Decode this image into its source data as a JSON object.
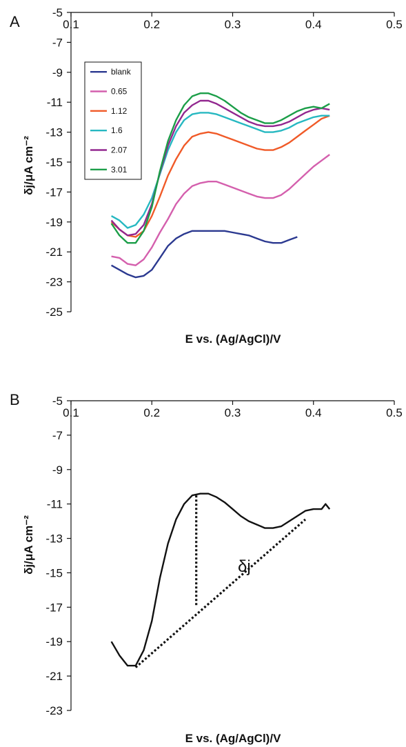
{
  "chart_data": [
    {
      "panel_label": "A",
      "type": "line",
      "xlabel": "E vs. (Ag/AgCl)/V",
      "ylabel": "δj/μA cm⁻²",
      "xlim": [
        0.1,
        0.5
      ],
      "ylim": [
        -25,
        -5
      ],
      "xticks": [
        0.1,
        0.2,
        0.3,
        0.4,
        0.5
      ],
      "yticks": [
        -5,
        -7,
        -9,
        -11,
        -13,
        -15,
        -17,
        -19,
        -21,
        -23,
        -25
      ],
      "grid": false,
      "legend_position": "top-left",
      "series": [
        {
          "name": "blank",
          "color": "#2b3990",
          "points": [
            [
              0.15,
              -21.9
            ],
            [
              0.16,
              -22.2
            ],
            [
              0.17,
              -22.5
            ],
            [
              0.18,
              -22.7
            ],
            [
              0.19,
              -22.6
            ],
            [
              0.2,
              -22.2
            ],
            [
              0.21,
              -21.4
            ],
            [
              0.22,
              -20.6
            ],
            [
              0.23,
              -20.1
            ],
            [
              0.24,
              -19.8
            ],
            [
              0.25,
              -19.6
            ],
            [
              0.26,
              -19.6
            ],
            [
              0.27,
              -19.6
            ],
            [
              0.28,
              -19.6
            ],
            [
              0.29,
              -19.6
            ],
            [
              0.3,
              -19.7
            ],
            [
              0.31,
              -19.8
            ],
            [
              0.32,
              -19.9
            ],
            [
              0.33,
              -20.1
            ],
            [
              0.34,
              -20.3
            ],
            [
              0.35,
              -20.4
            ],
            [
              0.36,
              -20.4
            ],
            [
              0.37,
              -20.2
            ],
            [
              0.38,
              -20.0
            ]
          ]
        },
        {
          "name": "0.65",
          "color": "#d45fad",
          "points": [
            [
              0.15,
              -21.3
            ],
            [
              0.16,
              -21.4
            ],
            [
              0.17,
              -21.8
            ],
            [
              0.18,
              -21.9
            ],
            [
              0.19,
              -21.5
            ],
            [
              0.2,
              -20.7
            ],
            [
              0.21,
              -19.7
            ],
            [
              0.22,
              -18.8
            ],
            [
              0.23,
              -17.8
            ],
            [
              0.24,
              -17.1
            ],
            [
              0.25,
              -16.6
            ],
            [
              0.26,
              -16.4
            ],
            [
              0.27,
              -16.3
            ],
            [
              0.28,
              -16.3
            ],
            [
              0.29,
              -16.5
            ],
            [
              0.3,
              -16.7
            ],
            [
              0.31,
              -16.9
            ],
            [
              0.32,
              -17.1
            ],
            [
              0.33,
              -17.3
            ],
            [
              0.34,
              -17.4
            ],
            [
              0.35,
              -17.4
            ],
            [
              0.36,
              -17.2
            ],
            [
              0.37,
              -16.8
            ],
            [
              0.38,
              -16.3
            ],
            [
              0.39,
              -15.8
            ],
            [
              0.4,
              -15.3
            ],
            [
              0.41,
              -14.9
            ],
            [
              0.42,
              -14.5
            ]
          ]
        },
        {
          "name": "1.12",
          "color": "#f05a28",
          "points": [
            [
              0.15,
              -19.0
            ],
            [
              0.16,
              -19.5
            ],
            [
              0.17,
              -19.9
            ],
            [
              0.18,
              -20.0
            ],
            [
              0.19,
              -19.6
            ],
            [
              0.2,
              -18.6
            ],
            [
              0.21,
              -17.3
            ],
            [
              0.22,
              -15.9
            ],
            [
              0.23,
              -14.8
            ],
            [
              0.24,
              -13.9
            ],
            [
              0.25,
              -13.3
            ],
            [
              0.26,
              -13.1
            ],
            [
              0.27,
              -13.0
            ],
            [
              0.28,
              -13.1
            ],
            [
              0.29,
              -13.3
            ],
            [
              0.3,
              -13.5
            ],
            [
              0.31,
              -13.7
            ],
            [
              0.32,
              -13.9
            ],
            [
              0.33,
              -14.1
            ],
            [
              0.34,
              -14.2
            ],
            [
              0.35,
              -14.2
            ],
            [
              0.36,
              -14.0
            ],
            [
              0.37,
              -13.7
            ],
            [
              0.38,
              -13.3
            ],
            [
              0.39,
              -12.9
            ],
            [
              0.4,
              -12.5
            ],
            [
              0.41,
              -12.1
            ],
            [
              0.42,
              -11.9
            ]
          ]
        },
        {
          "name": "1.6",
          "color": "#26b8c1",
          "points": [
            [
              0.15,
              -18.6
            ],
            [
              0.16,
              -18.9
            ],
            [
              0.17,
              -19.4
            ],
            [
              0.18,
              -19.2
            ],
            [
              0.19,
              -18.5
            ],
            [
              0.2,
              -17.4
            ],
            [
              0.21,
              -15.8
            ],
            [
              0.22,
              -14.2
            ],
            [
              0.23,
              -13.0
            ],
            [
              0.24,
              -12.2
            ],
            [
              0.25,
              -11.8
            ],
            [
              0.26,
              -11.7
            ],
            [
              0.27,
              -11.7
            ],
            [
              0.28,
              -11.8
            ],
            [
              0.29,
              -12.0
            ],
            [
              0.3,
              -12.2
            ],
            [
              0.31,
              -12.4
            ],
            [
              0.32,
              -12.6
            ],
            [
              0.33,
              -12.8
            ],
            [
              0.34,
              -13.0
            ],
            [
              0.35,
              -13.0
            ],
            [
              0.36,
              -12.9
            ],
            [
              0.37,
              -12.7
            ],
            [
              0.38,
              -12.4
            ],
            [
              0.39,
              -12.2
            ],
            [
              0.4,
              -12.0
            ],
            [
              0.41,
              -11.9
            ],
            [
              0.42,
              -11.9
            ]
          ]
        },
        {
          "name": "2.07",
          "color": "#92278f",
          "points": [
            [
              0.15,
              -18.9
            ],
            [
              0.16,
              -19.5
            ],
            [
              0.17,
              -19.9
            ],
            [
              0.18,
              -19.8
            ],
            [
              0.19,
              -19.2
            ],
            [
              0.2,
              -17.8
            ],
            [
              0.21,
              -15.7
            ],
            [
              0.22,
              -13.9
            ],
            [
              0.23,
              -12.6
            ],
            [
              0.24,
              -11.7
            ],
            [
              0.25,
              -11.2
            ],
            [
              0.26,
              -10.9
            ],
            [
              0.27,
              -10.9
            ],
            [
              0.28,
              -11.1
            ],
            [
              0.29,
              -11.4
            ],
            [
              0.3,
              -11.7
            ],
            [
              0.31,
              -12.0
            ],
            [
              0.32,
              -12.3
            ],
            [
              0.33,
              -12.5
            ],
            [
              0.34,
              -12.6
            ],
            [
              0.35,
              -12.6
            ],
            [
              0.36,
              -12.5
            ],
            [
              0.37,
              -12.3
            ],
            [
              0.38,
              -12.0
            ],
            [
              0.39,
              -11.7
            ],
            [
              0.4,
              -11.5
            ],
            [
              0.41,
              -11.4
            ],
            [
              0.42,
              -11.5
            ]
          ]
        },
        {
          "name": "3.01",
          "color": "#1b9e48",
          "points": [
            [
              0.15,
              -19.1
            ],
            [
              0.16,
              -19.9
            ],
            [
              0.17,
              -20.4
            ],
            [
              0.18,
              -20.4
            ],
            [
              0.19,
              -19.6
            ],
            [
              0.2,
              -18.0
            ],
            [
              0.21,
              -15.6
            ],
            [
              0.22,
              -13.6
            ],
            [
              0.23,
              -12.2
            ],
            [
              0.24,
              -11.2
            ],
            [
              0.25,
              -10.6
            ],
            [
              0.26,
              -10.4
            ],
            [
              0.27,
              -10.4
            ],
            [
              0.28,
              -10.6
            ],
            [
              0.29,
              -10.9
            ],
            [
              0.3,
              -11.3
            ],
            [
              0.31,
              -11.7
            ],
            [
              0.32,
              -12.0
            ],
            [
              0.33,
              -12.2
            ],
            [
              0.34,
              -12.4
            ],
            [
              0.35,
              -12.4
            ],
            [
              0.36,
              -12.2
            ],
            [
              0.37,
              -11.9
            ],
            [
              0.38,
              -11.6
            ],
            [
              0.39,
              -11.4
            ],
            [
              0.4,
              -11.3
            ],
            [
              0.41,
              -11.4
            ],
            [
              0.42,
              -11.1
            ]
          ]
        }
      ]
    },
    {
      "panel_label": "B",
      "type": "line",
      "xlabel": "E vs. (Ag/AgCl)/V",
      "ylabel": "δj/μA cm⁻²",
      "xlim": [
        0.1,
        0.5
      ],
      "ylim": [
        -23,
        -5
      ],
      "xticks": [
        0.1,
        0.2,
        0.3,
        0.4,
        0.5
      ],
      "yticks": [
        -5,
        -7,
        -9,
        -11,
        -13,
        -15,
        -17,
        -19,
        -21,
        -23
      ],
      "grid": false,
      "annotation": "δj",
      "series": [
        {
          "color": "#111111",
          "points": [
            [
              0.15,
              -19.0
            ],
            [
              0.16,
              -19.8
            ],
            [
              0.17,
              -20.4
            ],
            [
              0.18,
              -20.4
            ],
            [
              0.19,
              -19.5
            ],
            [
              0.2,
              -17.8
            ],
            [
              0.21,
              -15.3
            ],
            [
              0.22,
              -13.3
            ],
            [
              0.23,
              -11.9
            ],
            [
              0.24,
              -11.0
            ],
            [
              0.25,
              -10.5
            ],
            [
              0.26,
              -10.4
            ],
            [
              0.27,
              -10.4
            ],
            [
              0.28,
              -10.6
            ],
            [
              0.29,
              -10.9
            ],
            [
              0.3,
              -11.3
            ],
            [
              0.31,
              -11.7
            ],
            [
              0.32,
              -12.0
            ],
            [
              0.33,
              -12.2
            ],
            [
              0.34,
              -12.4
            ],
            [
              0.35,
              -12.4
            ],
            [
              0.36,
              -12.3
            ],
            [
              0.37,
              -12.0
            ],
            [
              0.38,
              -11.7
            ],
            [
              0.39,
              -11.4
            ],
            [
              0.4,
              -11.3
            ],
            [
              0.41,
              -11.3
            ],
            [
              0.415,
              -11.0
            ],
            [
              0.42,
              -11.3
            ]
          ]
        }
      ],
      "dotted_lines": [
        {
          "points": [
            [
              0.18,
              -20.5
            ],
            [
              0.39,
              -11.9
            ]
          ]
        },
        {
          "points": [
            [
              0.255,
              -10.5
            ],
            [
              0.255,
              -17.0
            ]
          ]
        }
      ]
    }
  ]
}
